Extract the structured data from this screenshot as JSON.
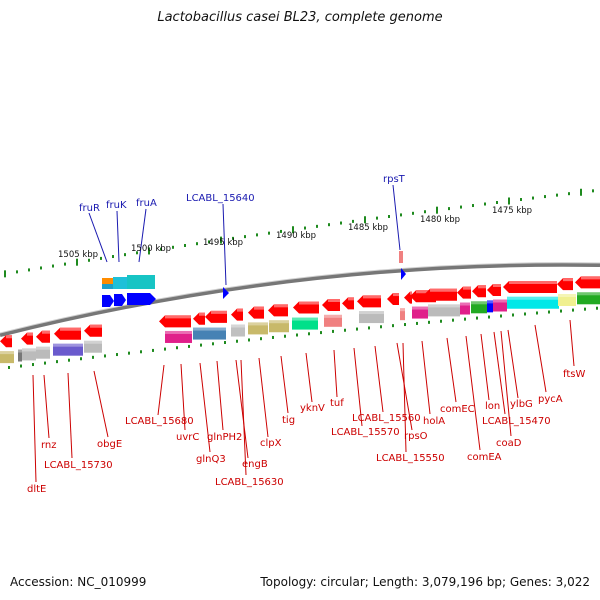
{
  "title": "Lactobacillus casei BL23, complete genome",
  "footer": {
    "accession": "Accession: NC_010999",
    "topology": "Topology: circular; Length: 3,079,196 bp; Genes: 3,022"
  },
  "colors": {
    "backbone": "#8c8c8c",
    "scale_dots": "#1e8a1e",
    "gene_arrow": "#ff0000",
    "label_top": "#1a1ab0",
    "label_bottom": "#cc0000",
    "forward_blue": "#0000ff"
  },
  "scale": {
    "unit": "kbp",
    "ticks": [
      "1505 kbp",
      "1500 kbp",
      "1495 kbp",
      "1490 kbp",
      "1485 kbp",
      "1480 kbp",
      "1475 kbp"
    ]
  },
  "top_labels": [
    "fruR",
    "fruK",
    "fruA",
    "LCABL_15640",
    "rpsT"
  ],
  "bottom_labels": [
    "dltE",
    "rnz",
    "LCABL_15730",
    "obgE",
    "LCABL_15680",
    "uvrC",
    "glnQ3",
    "glnPH2",
    "engB",
    "LCABL_15630",
    "clpX",
    "tig",
    "yknV",
    "tuf",
    "LCABL_15570",
    "LCABL_15560",
    "rpsO",
    "LCABL_15550",
    "holA",
    "comEC",
    "comEA",
    "lon",
    "LCABL_15470",
    "coaD",
    "ylbG",
    "pycA",
    "ftsW"
  ]
}
